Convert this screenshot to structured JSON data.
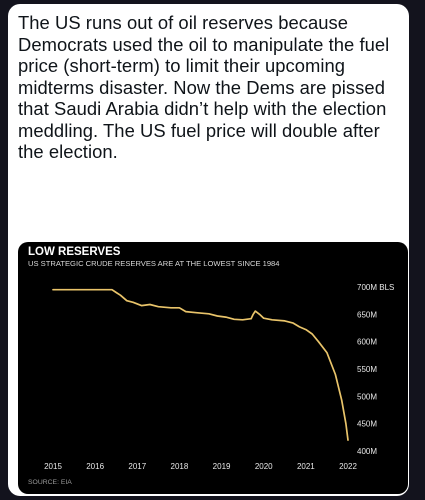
{
  "tweet": {
    "text": "The US runs out of oil reserves because Democrats used the oil to manipulate the fuel price (short-term) to limit their upcoming midterms disaster. Now the Dems are pissed that Saudi Arabia didn’t help with the election meddling. The US fuel price will double after the election."
  },
  "colors": {
    "page_background": "#13131d",
    "card_background": "#ffffff",
    "chart_background": "#000000",
    "line_color": "#e9c46a",
    "text_color": "#0f1419"
  },
  "chart_data": {
    "type": "line",
    "title": "LOW RESERVES",
    "subtitle": "US STRATEGIC CRUDE RESERVES ARE AT THE LOWEST SINCE 1984",
    "source": "SOURCE: EIA",
    "xlabel": "",
    "ylabel": "",
    "xlim": [
      2015,
      2022
    ],
    "ylim": [
      400,
      700
    ],
    "grid": false,
    "x_ticks": [
      "2015",
      "2016",
      "2017",
      "2018",
      "2019",
      "2020",
      "2021",
      "2022"
    ],
    "x_tick_values": [
      2015,
      2016,
      2017,
      2018,
      2019,
      2020,
      2021,
      2022
    ],
    "y_ticks": [
      "700M BLS",
      "650M",
      "600M",
      "550M",
      "500M",
      "450M",
      "400M"
    ],
    "y_tick_values": [
      700,
      650,
      600,
      550,
      500,
      450,
      400
    ],
    "series": [
      {
        "name": "",
        "x": [
          2015.0,
          2015.5,
          2016.0,
          2016.4,
          2016.5,
          2016.6,
          2016.75,
          2016.9,
          2017.1,
          2017.3,
          2017.5,
          2017.8,
          2018.0,
          2018.15,
          2018.4,
          2018.7,
          2018.9,
          2019.1,
          2019.3,
          2019.5,
          2019.7,
          2019.75,
          2019.8,
          2019.9,
          2020.0,
          2020.2,
          2020.5,
          2020.7,
          2020.85,
          2021.0,
          2021.15,
          2021.3,
          2021.5,
          2021.7,
          2021.85,
          2021.95,
          2022.0
        ],
        "y": [
          695,
          695,
          695,
          695,
          690,
          685,
          675,
          672,
          666,
          668,
          664,
          662,
          662,
          655,
          653,
          651,
          647,
          645,
          641,
          640,
          642,
          650,
          656,
          650,
          643,
          640,
          638,
          634,
          627,
          622,
          614,
          600,
          580,
          540,
          493,
          450,
          420
        ]
      }
    ]
  }
}
